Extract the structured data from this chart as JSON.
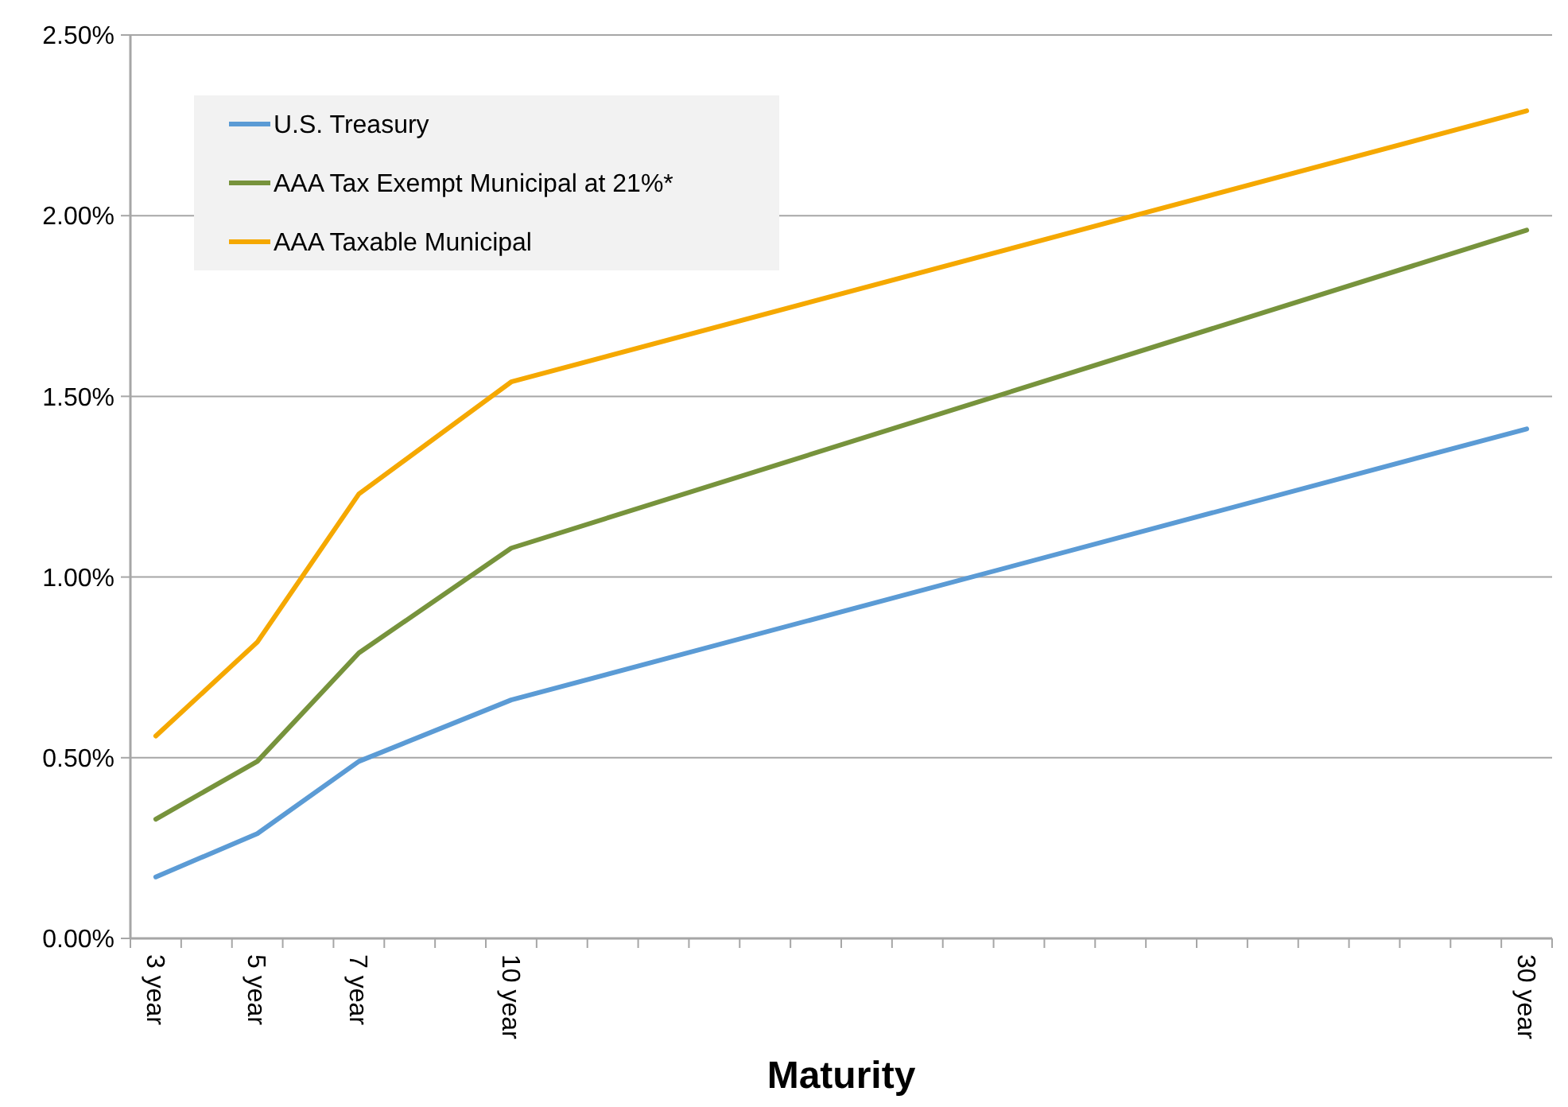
{
  "chart_data": {
    "type": "line",
    "xlabel": "Maturity",
    "x": [
      3,
      5,
      7,
      10,
      30
    ],
    "xlim": [
      2.5,
      30.5
    ],
    "xticks": [
      {
        "value": 2.5,
        "label": null
      },
      {
        "value": 3.5,
        "label": null
      },
      {
        "value": 4.5,
        "label": null
      },
      {
        "value": 5.5,
        "label": null
      },
      {
        "value": 6.5,
        "label": null
      },
      {
        "value": 7.5,
        "label": null
      },
      {
        "value": 8.5,
        "label": null
      },
      {
        "value": 9.5,
        "label": null
      },
      {
        "value": 10.5,
        "label": null
      },
      {
        "value": 11.5,
        "label": null
      },
      {
        "value": 12.5,
        "label": null
      },
      {
        "value": 13.5,
        "label": null
      },
      {
        "value": 14.5,
        "label": null
      },
      {
        "value": 15.5,
        "label": null
      },
      {
        "value": 16.5,
        "label": null
      },
      {
        "value": 17.5,
        "label": null
      },
      {
        "value": 18.5,
        "label": null
      },
      {
        "value": 19.5,
        "label": null
      },
      {
        "value": 20.5,
        "label": null
      },
      {
        "value": 21.5,
        "label": null
      },
      {
        "value": 22.5,
        "label": null
      },
      {
        "value": 23.5,
        "label": null
      },
      {
        "value": 24.5,
        "label": null
      },
      {
        "value": 25.5,
        "label": null
      },
      {
        "value": 26.5,
        "label": null
      },
      {
        "value": 27.5,
        "label": null
      },
      {
        "value": 28.5,
        "label": null
      },
      {
        "value": 29.5,
        "label": null
      },
      {
        "value": 30.5,
        "label": null
      },
      {
        "value": 3,
        "label": "3 year"
      },
      {
        "value": 5,
        "label": "5 year"
      },
      {
        "value": 7,
        "label": "7 year"
      },
      {
        "value": 10,
        "label": "10 year"
      },
      {
        "value": 30,
        "label": "30 year"
      }
    ],
    "ylim": [
      0,
      2.5
    ],
    "yticks": [
      {
        "value": 0,
        "label": "0.00%"
      },
      {
        "value": 0.5,
        "label": "0.50%"
      },
      {
        "value": 1,
        "label": "1.00%"
      },
      {
        "value": 1.5,
        "label": "1.50%"
      },
      {
        "value": 2,
        "label": "2.00%"
      },
      {
        "value": 2.5,
        "label": "2.50%"
      }
    ],
    "grid": "y",
    "legend": "top left",
    "marker": "none",
    "line_style": "solid",
    "series": [
      {
        "name": "U.S. Treasury",
        "color": "#5b9bd5",
        "values": [
          0.17,
          0.29,
          0.49,
          0.66,
          1.41
        ]
      },
      {
        "name": "AAA Tax Exempt Municipal at 21%*",
        "color": "#77933c",
        "values": [
          0.33,
          0.49,
          0.79,
          1.08,
          1.96
        ]
      },
      {
        "name": "AAA Taxable Municipal",
        "color": "#f5a800",
        "values": [
          0.56,
          0.82,
          1.23,
          1.54,
          2.29
        ]
      }
    ]
  }
}
